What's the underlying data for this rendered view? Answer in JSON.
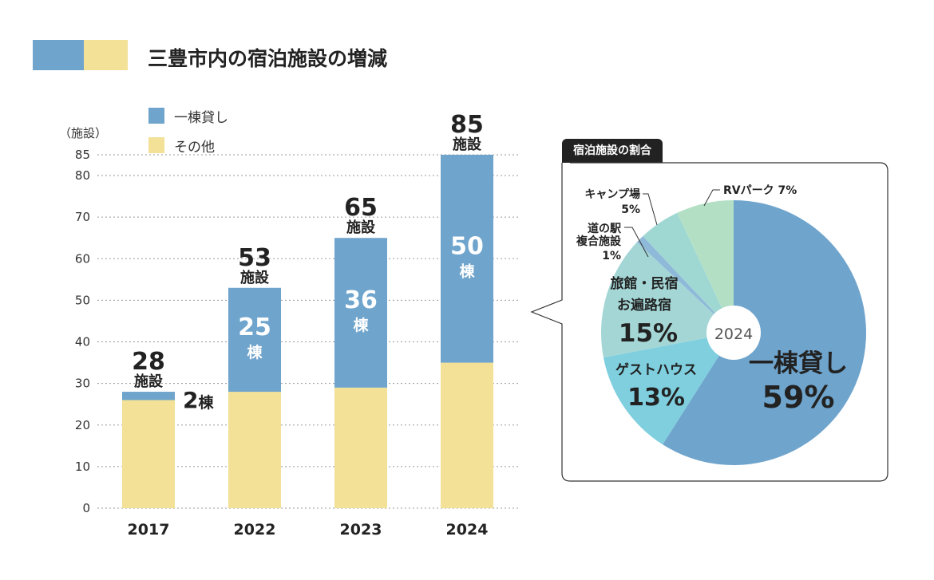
{
  "title": "三豊市内の宿泊施設の増減",
  "colors": {
    "blue": "#6fa4cc",
    "yellow": "#f2e196",
    "grid": "#9a9a9a",
    "dark": "#222222"
  },
  "legend": [
    {
      "label": "一棟貸し",
      "color": "#6fa4cc"
    },
    {
      "label": "その他",
      "color": "#f2e196"
    }
  ],
  "unit_label": "（施設）",
  "chart_data": [
    {
      "type": "bar",
      "stacked": true,
      "categories": [
        "2017",
        "2022",
        "2023",
        "2024"
      ],
      "series": [
        {
          "name": "その他",
          "values": [
            26,
            28,
            29,
            35
          ]
        },
        {
          "name": "一棟貸し",
          "values": [
            2,
            25,
            36,
            50
          ]
        }
      ],
      "totals": [
        28,
        53,
        65,
        85
      ],
      "total_labels": [
        {
          "number": "28",
          "unit": "施設"
        },
        {
          "number": "53",
          "unit": "施設"
        },
        {
          "number": "65",
          "unit": "施設"
        },
        {
          "number": "85",
          "unit": "施設"
        }
      ],
      "segment_labels": [
        {
          "number": "2",
          "unit": "棟",
          "placement": "outside"
        },
        {
          "number": "25",
          "unit": "棟",
          "placement": "inside"
        },
        {
          "number": "36",
          "unit": "棟",
          "placement": "inside"
        },
        {
          "number": "50",
          "unit": "棟",
          "placement": "inside"
        }
      ],
      "ylim": [
        0,
        85
      ],
      "yticks": [
        0,
        10,
        20,
        30,
        40,
        50,
        60,
        70,
        80,
        85
      ],
      "grid": true
    },
    {
      "type": "pie",
      "title": "宿泊施設の割合",
      "center_label": "2024",
      "slices": [
        {
          "label": "一棟貸し",
          "value": 59,
          "display": "59%",
          "color": "#6fa4cc"
        },
        {
          "label": "ゲストハウス",
          "value": 13,
          "display": "13%",
          "color": "#7fcfdf"
        },
        {
          "label": "旅館・民宿 お遍路宿",
          "value": 15,
          "display": "15%",
          "color": "#a4d6d6"
        },
        {
          "label": "道の駅 複合施設",
          "value": 1,
          "display": "1%",
          "color": "#8fb9d8"
        },
        {
          "label": "キャンプ場",
          "value": 5,
          "display": "5%",
          "color": "#9fd8d3"
        },
        {
          "label": "RVパーク",
          "value": 7,
          "display": "7%",
          "color": "#b3e0c4"
        }
      ]
    }
  ]
}
